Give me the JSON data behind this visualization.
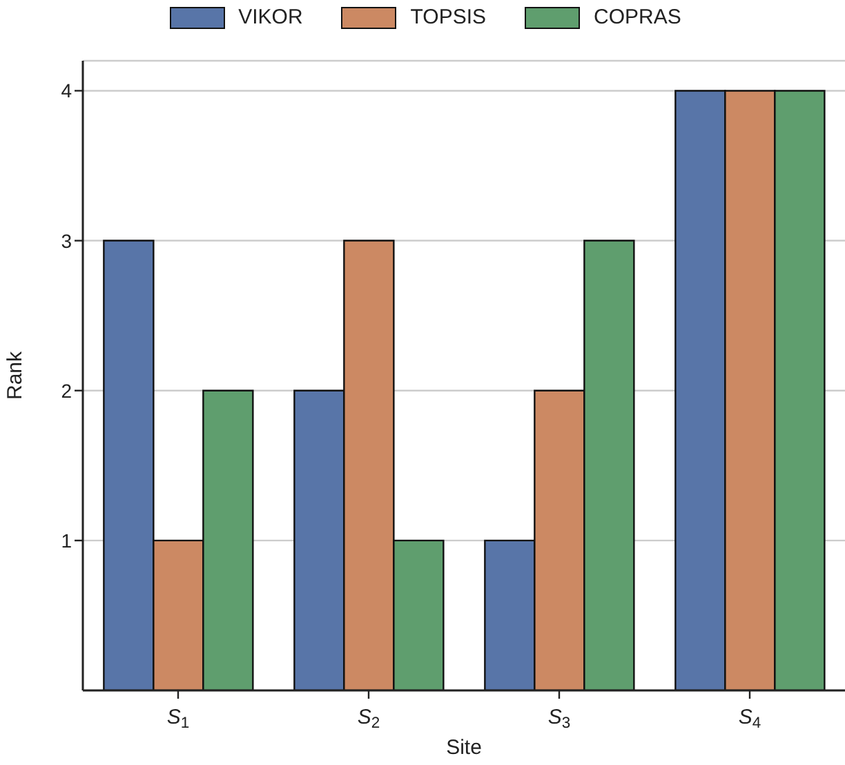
{
  "chart_data": {
    "type": "bar",
    "xlabel": "Site",
    "ylabel": "Rank",
    "categories": [
      "S$_{1}$",
      "S$_{2}$",
      "S$_{3}$",
      "S$_{4}$"
    ],
    "series": [
      {
        "name": "VIKOR",
        "color": "#5875a8",
        "values": [
          3,
          2,
          1,
          4
        ]
      },
      {
        "name": "TOPSIS",
        "color": "#cc8963",
        "values": [
          1,
          3,
          2,
          4
        ]
      },
      {
        "name": "COPRAS",
        "color": "#5f9e6e",
        "values": [
          2,
          1,
          3,
          4
        ]
      }
    ],
    "ylim": [
      0,
      4.2
    ],
    "yticks": [
      1,
      2,
      3,
      4
    ],
    "grid": "y",
    "legend": "top"
  }
}
